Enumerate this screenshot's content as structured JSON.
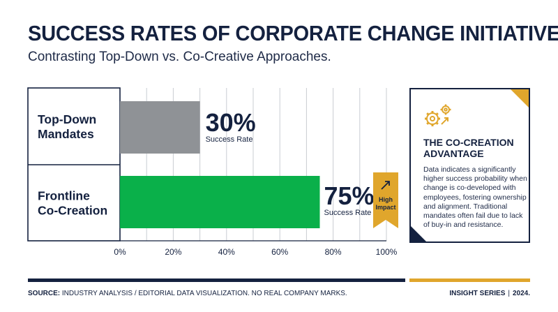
{
  "header": {
    "title": "SUCCESS RATES OF CORPORATE CHANGE INITIATIVES",
    "subtitle": "Contrasting Top-Down vs. Co-Creative Approaches."
  },
  "chart_data": {
    "type": "bar",
    "orientation": "horizontal",
    "categories": [
      "Top-Down Mandates",
      "Frontline Co-Creation"
    ],
    "category_lines": [
      [
        "Top-Down",
        "Mandates"
      ],
      [
        "Frontline",
        "Co-Creation"
      ]
    ],
    "values": [
      30,
      75
    ],
    "value_labels": [
      "30%",
      "75%"
    ],
    "value_caption": "Success Rate",
    "bar_colors": [
      "#8f9296",
      "#0ab04a"
    ],
    "xlim": [
      0,
      100
    ],
    "xticks": [
      0,
      20,
      40,
      60,
      80,
      100
    ],
    "xtick_labels": [
      "0%",
      "20%",
      "40%",
      "60%",
      "80%",
      "100%"
    ],
    "grid": true,
    "badge": {
      "lines": [
        "High",
        "Impact"
      ],
      "icon": "arrow-up-right-icon",
      "color": "#e0a62c"
    }
  },
  "callout": {
    "icon": "gears-icon",
    "title": "THE CO-CREATION ADVANTAGE",
    "body": "Data indicates a significantly higher success probability when change is co-developed with employees, fostering ownership and alignment. Traditional mandates often fail due to lack of buy-in and resistance."
  },
  "footer": {
    "source_label": "SOURCE:",
    "source_text": "INDUSTRY ANALYSIS / EDITORIAL DATA VISUALIZATION. NO REAL COMPANY MARKS.",
    "series": "INSIGHT SERIES",
    "separator": "|",
    "year": "2024."
  },
  "colors": {
    "navy": "#14213f",
    "gold": "#e0a62c",
    "grey_bar": "#8f9296",
    "green_bar": "#0ab04a"
  }
}
